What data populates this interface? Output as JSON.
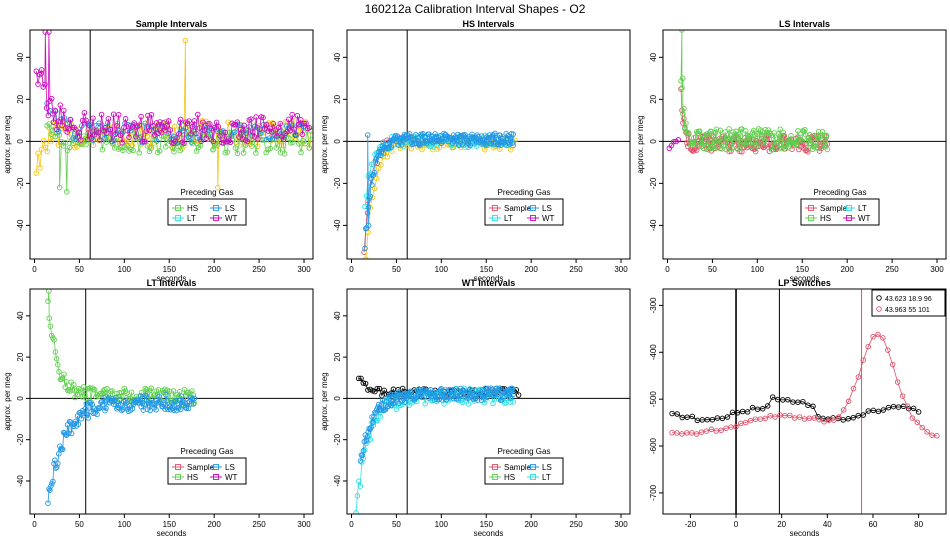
{
  "figure": {
    "title": "160212a   Calibration Interval Shapes - O2"
  },
  "colors": {
    "Sample": "#DF536B",
    "HS": "#61D04F",
    "LS": "#2297E6",
    "LT": "#28E2E5",
    "WT": "#CD0BBC",
    "Yellow": "#F5C710",
    "Black": "#000000"
  },
  "chart_data": [
    {
      "type": "scatter",
      "title": "Sample Intervals",
      "xlabel": "seconds",
      "ylabel": "approx. per meg",
      "xlim": [
        -5,
        310
      ],
      "ylim": [
        -56,
        53
      ],
      "xticks": [
        0,
        50,
        100,
        150,
        200,
        250,
        300
      ],
      "yticks": [
        -40,
        -20,
        0,
        20,
        40
      ],
      "vline": 62,
      "legend": {
        "title": "Preceding Gas",
        "entries": [
          "HS",
          "LS",
          "LT",
          "WT"
        ]
      },
      "series": [
        {
          "name": "Yellow",
          "shape": "decay",
          "x0": 2,
          "x1": 308,
          "n": 150,
          "y0": -12,
          "tau": 8,
          "settle": 3,
          "noise": 7,
          "spikes": [
            [
              168,
              48
            ],
            [
              204,
              -22
            ]
          ]
        },
        {
          "name": "HS",
          "shape": "decay",
          "x0": 14,
          "x1": 308,
          "n": 130,
          "y0": 10,
          "tau": 10,
          "settle": 0,
          "noise": 6,
          "spikes": [
            [
              28,
              -22
            ],
            [
              36,
              -24
            ]
          ]
        },
        {
          "name": "LS",
          "shape": "decay",
          "x0": 14,
          "x1": 300,
          "n": 90,
          "y0": 20,
          "tau": 12,
          "settle": 4,
          "noise": 5,
          "spikes": []
        },
        {
          "name": "WT",
          "shape": "decay",
          "x0": 2,
          "x1": 306,
          "n": 160,
          "y0": 36,
          "tau": 14,
          "settle": 6,
          "noise": 7,
          "spikes": [
            [
              8,
              34
            ],
            [
              12,
              52
            ],
            [
              16,
              52
            ]
          ]
        }
      ]
    },
    {
      "type": "scatter",
      "title": "HS Intervals",
      "xlabel": "seconds",
      "ylabel": "approx. per meg",
      "xlim": [
        -5,
        310
      ],
      "ylim": [
        -56,
        53
      ],
      "xticks": [
        0,
        50,
        100,
        150,
        200,
        250,
        300
      ],
      "yticks": [
        -40,
        -20,
        0,
        20,
        40
      ],
      "vline": 62,
      "legend": {
        "title": "Preceding Gas",
        "entries": [
          "Sample",
          "LS",
          "LT",
          "WT"
        ]
      },
      "series": [
        {
          "name": "Sample",
          "shape": "decay",
          "x0": 14,
          "x1": 180,
          "n": 40,
          "y0": -52,
          "tau": 7,
          "settle": 0,
          "noise": 2,
          "spikes": []
        },
        {
          "name": "Yellow",
          "shape": "decay",
          "x0": 16,
          "x1": 182,
          "n": 70,
          "y0": -55,
          "tau": 9,
          "settle": -1,
          "noise": 3,
          "spikes": []
        },
        {
          "name": "LT",
          "shape": "decay",
          "x0": 15,
          "x1": 180,
          "n": 90,
          "y0": -30,
          "tau": 8,
          "settle": 0,
          "noise": 3,
          "spikes": []
        },
        {
          "name": "LS",
          "shape": "decay",
          "x0": 15,
          "x1": 180,
          "n": 170,
          "y0": -50,
          "tau": 8,
          "settle": 1,
          "noise": 3,
          "spikes": [
            [
              18,
              3
            ],
            [
              19,
              -40
            ]
          ]
        }
      ]
    },
    {
      "type": "scatter",
      "title": "LS Intervals",
      "xlabel": "seconds",
      "ylabel": "approx. per meg",
      "xlim": [
        -5,
        310
      ],
      "ylim": [
        -56,
        53
      ],
      "xticks": [
        0,
        50,
        100,
        150,
        200,
        250,
        300
      ],
      "yticks": [
        -40,
        -20,
        0,
        20,
        40
      ],
      "vline": null,
      "legend": {
        "title": "Preceding Gas",
        "entries": [
          "Sample",
          "LT",
          "HS",
          "WT"
        ]
      },
      "series": [
        {
          "name": "WT",
          "shape": "decay",
          "x0": 2,
          "x1": 12,
          "n": 5,
          "y0": -3,
          "tau": 4,
          "settle": 0,
          "noise": 1,
          "spikes": []
        },
        {
          "name": "Sample",
          "shape": "decay",
          "x0": 15,
          "x1": 178,
          "n": 150,
          "y0": 26,
          "tau": 3,
          "settle": -1,
          "noise": 4,
          "spikes": []
        },
        {
          "name": "HS",
          "shape": "decay",
          "x0": 15,
          "x1": 178,
          "n": 150,
          "y0": 30,
          "tau": 3,
          "settle": 1,
          "noise": 5,
          "spikes": [
            [
              16,
              53
            ],
            [
              17,
              30
            ]
          ]
        }
      ]
    },
    {
      "type": "scatter",
      "title": "LT Intervals",
      "xlabel": "seconds",
      "ylabel": "approx. per meg",
      "xlim": [
        -5,
        310
      ],
      "ylim": [
        -56,
        53
      ],
      "xticks": [
        0,
        50,
        100,
        150,
        200,
        250,
        300
      ],
      "yticks": [
        -40,
        -20,
        0,
        20,
        40
      ],
      "vline": 57,
      "legend": {
        "title": "Preceding Gas",
        "entries": [
          "Sample",
          "LS",
          "HS",
          "WT"
        ]
      },
      "series": [
        {
          "name": "HS",
          "shape": "decay",
          "x0": 15,
          "x1": 178,
          "n": 120,
          "y0": 48,
          "tau": 10,
          "settle": 1,
          "noise": 4,
          "spikes": [
            [
              16,
              52
            ]
          ]
        },
        {
          "name": "LS",
          "shape": "decay",
          "x0": 15,
          "x1": 178,
          "n": 150,
          "y0": -50,
          "tau": 18,
          "settle": -2,
          "noise": 4,
          "spikes": []
        }
      ]
    },
    {
      "type": "scatter",
      "title": "WT Intervals",
      "xlabel": "seconds",
      "ylabel": "approx. per meg",
      "xlim": [
        -5,
        310
      ],
      "ylim": [
        -56,
        53
      ],
      "xticks": [
        0,
        50,
        100,
        150,
        200,
        250,
        300
      ],
      "yticks": [
        -40,
        -20,
        0,
        20,
        40
      ],
      "vline": 62,
      "legend": {
        "title": "Preceding Gas",
        "entries": [
          "Sample",
          "LS",
          "HS",
          "LT"
        ]
      },
      "series": [
        {
          "name": "Black",
          "shape": "decay",
          "x0": 8,
          "x1": 186,
          "n": 70,
          "y0": 10,
          "tau": 8,
          "settle": 3,
          "noise": 2,
          "spikes": []
        },
        {
          "name": "LT",
          "shape": "decay",
          "x0": 5,
          "x1": 180,
          "n": 110,
          "y0": -55,
          "tau": 14,
          "settle": 1,
          "noise": 4,
          "spikes": []
        },
        {
          "name": "LS",
          "shape": "decay",
          "x0": 10,
          "x1": 180,
          "n": 160,
          "y0": -30,
          "tau": 14,
          "settle": 2,
          "noise": 3,
          "spikes": []
        }
      ]
    },
    {
      "type": "scatter",
      "title": "LP Switches",
      "xlabel": "",
      "ylabel": "",
      "xlim": [
        -32,
        92
      ],
      "ylim": [
        -745,
        -265
      ],
      "xticks": [
        -20,
        0,
        20,
        40,
        60,
        80
      ],
      "yticks": [
        -700,
        -600,
        -500,
        -400,
        -300
      ],
      "vlines": [
        {
          "x": 0,
          "color": "Black"
        },
        {
          "x": 19,
          "color": "Black"
        },
        {
          "x": 55,
          "color": "Sample"
        }
      ],
      "legend_boxed": {
        "entries": [
          {
            "color": "Black",
            "label": "43.623 18.9 96"
          },
          {
            "color": "Sample",
            "label": "43.963 55 101"
          }
        ]
      },
      "series": [
        {
          "name": "Black",
          "shape": "lp1",
          "x0": -28,
          "x1": 80,
          "n": 50,
          "noise": 4
        },
        {
          "name": "Sample",
          "shape": "lp2",
          "x0": -28,
          "x1": 88,
          "n": 55,
          "noise": 4
        }
      ]
    }
  ]
}
